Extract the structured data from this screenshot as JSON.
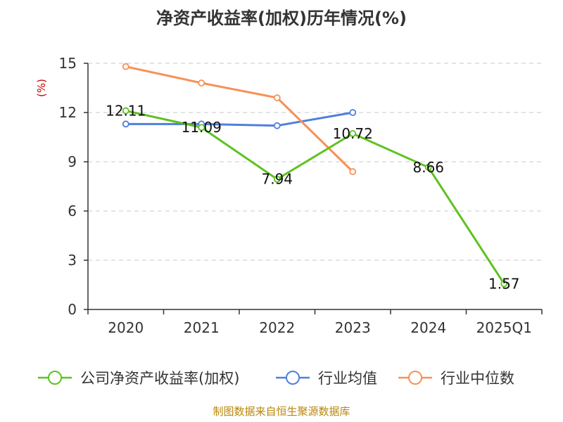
{
  "chart_data": {
    "type": "line",
    "title": "净资产收益率(加权)历年情况(%)",
    "unit_label": "(%)",
    "categories": [
      "2020",
      "2021",
      "2022",
      "2023",
      "2024",
      "2025Q1"
    ],
    "ylim": [
      0,
      15
    ],
    "yticks": [
      0,
      3,
      6,
      9,
      12,
      15
    ],
    "grid": true,
    "legend_position": "bottom",
    "series": [
      {
        "name": "公司净资产收益率(加权)",
        "color": "#5ec21f",
        "values": [
          12.11,
          11.09,
          7.94,
          10.72,
          8.66,
          1.57
        ],
        "labels": [
          "12.11",
          "11.09",
          "7.94",
          "10.72",
          "8.66",
          "1.57"
        ]
      },
      {
        "name": "行业均值",
        "color": "#4f7fdd",
        "values": [
          11.3,
          11.3,
          11.2,
          12.0,
          null,
          null
        ]
      },
      {
        "name": "行业中位数",
        "color": "#f79156",
        "values": [
          14.8,
          13.8,
          12.9,
          8.4,
          null,
          null
        ]
      }
    ]
  },
  "source": "制图数据来自恒生聚源数据库"
}
